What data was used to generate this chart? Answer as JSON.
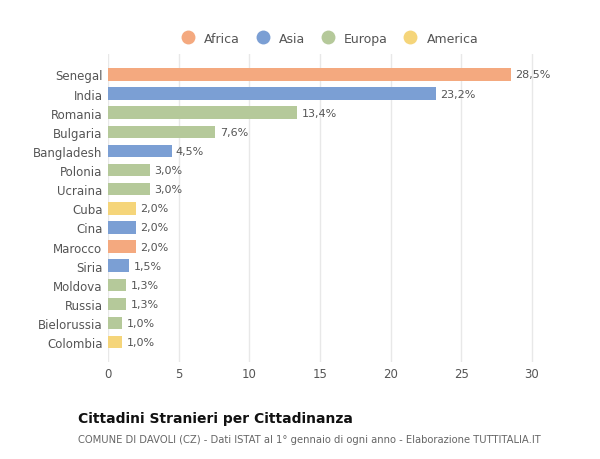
{
  "countries": [
    "Senegal",
    "India",
    "Romania",
    "Bulgaria",
    "Bangladesh",
    "Polonia",
    "Ucraina",
    "Cuba",
    "Cina",
    "Marocco",
    "Siria",
    "Moldova",
    "Russia",
    "Bielorussia",
    "Colombia"
  ],
  "values": [
    28.5,
    23.2,
    13.4,
    7.6,
    4.5,
    3.0,
    3.0,
    2.0,
    2.0,
    2.0,
    1.5,
    1.3,
    1.3,
    1.0,
    1.0
  ],
  "labels": [
    "28,5%",
    "23,2%",
    "13,4%",
    "7,6%",
    "4,5%",
    "3,0%",
    "3,0%",
    "2,0%",
    "2,0%",
    "2,0%",
    "1,5%",
    "1,3%",
    "1,3%",
    "1,0%",
    "1,0%"
  ],
  "continents": [
    "Africa",
    "Asia",
    "Europa",
    "Europa",
    "Asia",
    "Europa",
    "Europa",
    "America",
    "Asia",
    "Africa",
    "Asia",
    "Europa",
    "Europa",
    "Europa",
    "America"
  ],
  "colors": {
    "Africa": "#F4A97F",
    "Asia": "#7B9FD4",
    "Europa": "#B5C99A",
    "America": "#F5D57A"
  },
  "xlim": [
    0,
    31
  ],
  "xticks": [
    0,
    5,
    10,
    15,
    20,
    25,
    30
  ],
  "title": "Cittadini Stranieri per Cittadinanza",
  "subtitle": "COMUNE DI DAVOLI (CZ) - Dati ISTAT al 1° gennaio di ogni anno - Elaborazione TUTTITALIA.IT",
  "bg_color": "#FFFFFF",
  "plot_bg_color": "#FFFFFF",
  "grid_color": "#E8E8E8",
  "text_color": "#555555",
  "title_color": "#111111",
  "subtitle_color": "#666666",
  "legend_order": [
    "Africa",
    "Asia",
    "Europa",
    "America"
  ]
}
